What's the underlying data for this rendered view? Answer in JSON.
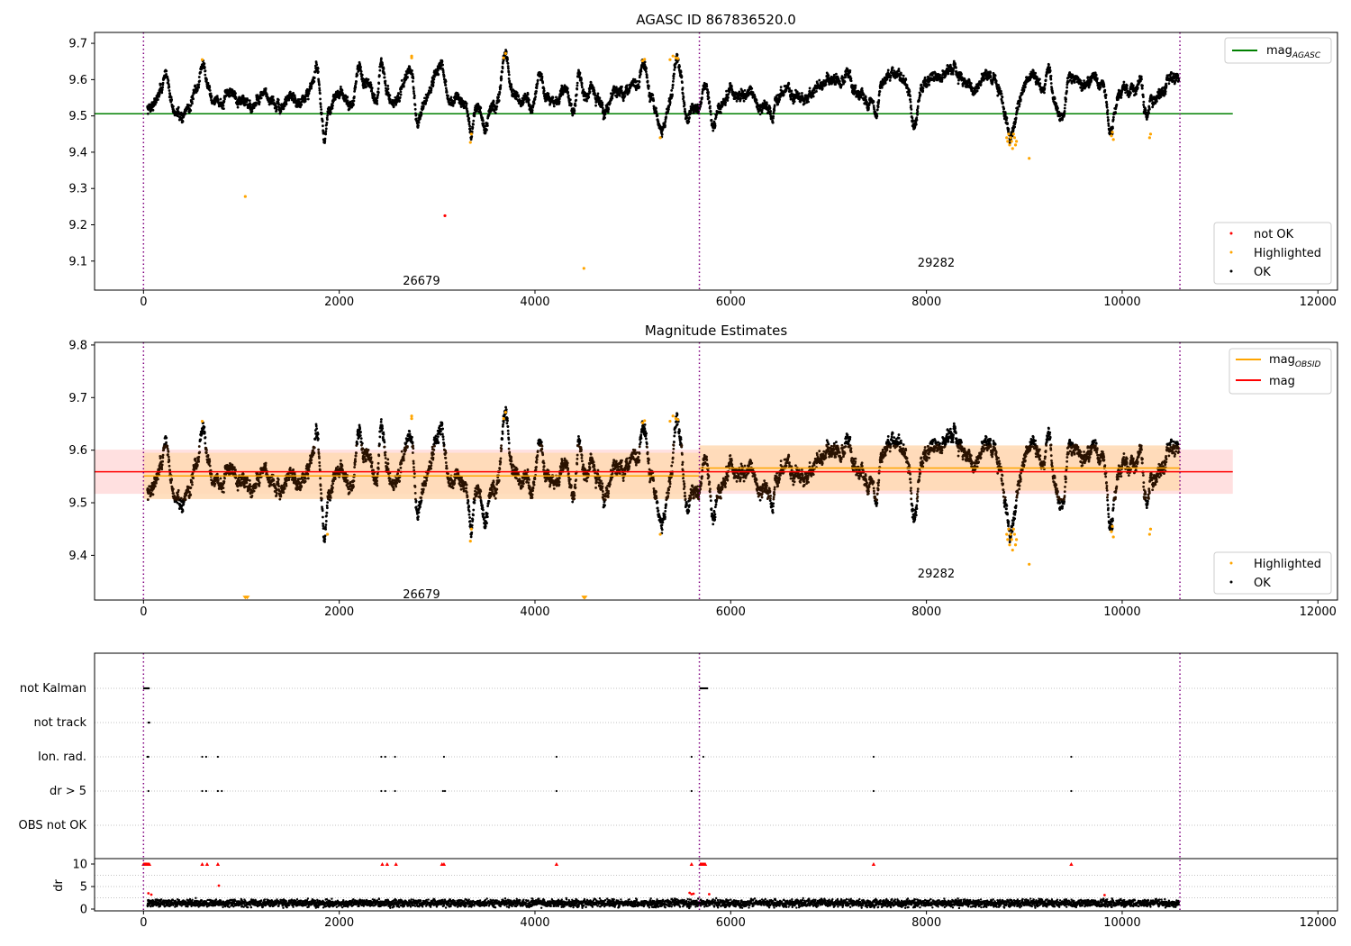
{
  "colors": {
    "agasc_line": "#008000",
    "obsid_mag": "#ffa500",
    "mean_mag": "#ff0000",
    "not_ok": "#ff0000",
    "highlighted": "#ffa500",
    "ok": "#000000",
    "obs_boundary": "#800080",
    "band_red": "#ffd5d5",
    "band_orange": "#ffd9b3",
    "grid": "#b0b0b0"
  },
  "chart_data": [
    {
      "type": "scatter",
      "title": "AGASC ID 867836520.0",
      "xlim": [
        -500,
        12200
      ],
      "ylim": [
        9.02,
        9.73
      ],
      "x_ticks": [
        0,
        2000,
        4000,
        6000,
        8000,
        10000,
        12000
      ],
      "y_ticks": [
        9.1,
        9.2,
        9.3,
        9.4,
        9.5,
        9.6,
        9.7
      ],
      "x_tick_labels": [
        "0",
        "2000",
        "4000",
        "6000",
        "8000",
        "10000",
        "12000"
      ],
      "y_tick_labels": [
        "9.1",
        "9.2",
        "9.3",
        "9.4",
        "9.5",
        "9.6",
        "9.7"
      ],
      "legend_lines": [
        {
          "name": "mag",
          "subscript": "AGASC",
          "color": "#008000"
        }
      ],
      "legend_lines_position": "upper right",
      "legend_points": [
        {
          "name": "not OK",
          "color": "#ff0000"
        },
        {
          "name": "Highlighted",
          "color": "#ffa500"
        },
        {
          "name": "OK",
          "color": "#000000"
        }
      ],
      "legend_points_position": "lower right",
      "hlines": [
        {
          "y": 9.506,
          "x": [
            -500,
            11130
          ],
          "color": "#008000",
          "label": "mag AGASC"
        }
      ],
      "obs_boundaries": [
        0,
        5680,
        10590
      ],
      "obs_labels": [
        {
          "text": "26679",
          "x": 2840,
          "y": 9.045
        },
        {
          "text": "29282",
          "x": 8100,
          "y": 9.095
        }
      ],
      "series": [
        {
          "name": "OK",
          "color": "#000000",
          "time_range": [
            40,
            10580
          ],
          "gaps": [
            [
              10590,
              10600
            ]
          ],
          "anchors_x": [
            40,
            200,
            300,
            400,
            560,
            620,
            700,
            800,
            900,
            1000,
            1100,
            1200,
            1300,
            1400,
            1500,
            1600,
            1700,
            1760,
            1850,
            1950,
            2000,
            2100,
            2200,
            2300,
            2400,
            2500,
            2560,
            2650,
            2700,
            2750,
            2800,
            2900,
            3000,
            3050,
            3100,
            3200,
            3300,
            3350,
            3400,
            3500,
            3600,
            3650,
            3700,
            3750,
            3850,
            4000,
            4100,
            4200,
            4300,
            4400,
            4500,
            4600,
            4700,
            4800,
            4900,
            5000,
            5100,
            5200,
            5300,
            5400,
            5450,
            5500,
            5560,
            5600,
            5680,
            5720,
            5800,
            5900,
            6000,
            6100,
            6200,
            6300,
            6400,
            6500,
            6600,
            6700,
            6800,
            6900,
            7000,
            7100,
            7200,
            7300,
            7400,
            7500,
            7600,
            7700,
            7800,
            7900,
            8000,
            8100,
            8200,
            8300,
            8400,
            8500,
            8600,
            8700,
            8800,
            8850,
            8900,
            9000,
            9100,
            9200,
            9300,
            9400,
            9500,
            9600,
            9700,
            9800,
            9900,
            10000,
            10100,
            10200,
            10300,
            10400,
            10500,
            10580
          ],
          "anchors_y": [
            9.52,
            9.57,
            9.51,
            9.5,
            9.57,
            9.6,
            9.56,
            9.53,
            9.57,
            9.55,
            9.53,
            9.56,
            9.55,
            9.51,
            9.56,
            9.54,
            9.57,
            9.6,
            9.47,
            9.55,
            9.56,
            9.53,
            9.56,
            9.6,
            9.52,
            9.56,
            9.53,
            9.57,
            9.63,
            9.6,
            9.5,
            9.55,
            9.61,
            9.58,
            9.54,
            9.55,
            9.52,
            9.47,
            9.53,
            9.55,
            9.52,
            9.57,
            9.63,
            9.58,
            9.54,
            9.53,
            9.55,
            9.53,
            9.57,
            9.51,
            9.54,
            9.57,
            9.5,
            9.57,
            9.55,
            9.57,
            9.6,
            9.55,
            9.48,
            9.56,
            9.63,
            9.6,
            9.52,
            9.54,
            9.51,
            9.58,
            9.55,
            9.52,
            9.57,
            9.55,
            9.58,
            9.52,
            9.56,
            9.55,
            9.57,
            9.55,
            9.56,
            9.58,
            9.59,
            9.6,
            9.58,
            9.56,
            9.53,
            9.59,
            9.61,
            9.62,
            9.59,
            9.55,
            9.6,
            9.61,
            9.62,
            9.63,
            9.58,
            9.56,
            9.61,
            9.6,
            9.52,
            9.47,
            9.5,
            9.58,
            9.6,
            9.57,
            9.53,
            9.56,
            9.59,
            9.58,
            9.6,
            9.58,
            9.51,
            9.58,
            9.57,
            9.52,
            9.55,
            9.56,
            9.59,
            9.6
          ],
          "noise": 0.015,
          "spikes": [
            [
              240,
              9.62
            ],
            [
              600,
              9.64
            ],
            [
              1780,
              9.64
            ],
            [
              2200,
              9.63
            ],
            [
              2430,
              9.65
            ],
            [
              2760,
              9.65
            ],
            [
              3050,
              9.64
            ],
            [
              3690,
              9.66
            ],
            [
              4050,
              9.62
            ],
            [
              4450,
              9.63
            ],
            [
              5110,
              9.65
            ],
            [
              5440,
              9.66
            ],
            [
              7190,
              9.64
            ],
            [
              7520,
              9.64
            ],
            [
              8580,
              9.61
            ],
            [
              9250,
              9.64
            ],
            [
              9470,
              9.62
            ],
            [
              10200,
              9.62
            ]
          ],
          "dips": [
            [
              1840,
              9.45
            ],
            [
              2780,
              9.47
            ],
            [
              3350,
              9.45
            ],
            [
              3490,
              9.46
            ],
            [
              5280,
              9.47
            ],
            [
              5550,
              9.48
            ],
            [
              5820,
              9.48
            ],
            [
              6420,
              9.48
            ],
            [
              7500,
              9.48
            ],
            [
              7870,
              9.47
            ],
            [
              8850,
              9.43
            ],
            [
              9380,
              9.5
            ],
            [
              9880,
              9.46
            ],
            [
              10230,
              9.46
            ]
          ]
        },
        {
          "name": "Highlighted",
          "color": "#ffa500",
          "points": [
            [
              600,
              9.655
            ],
            [
              1040,
              9.278
            ],
            [
              2740,
              9.665
            ],
            [
              2740,
              9.66
            ],
            [
              3340,
              9.427
            ],
            [
              3350,
              9.45
            ],
            [
              3680,
              9.66
            ],
            [
              3700,
              9.672
            ],
            [
              4500,
              9.08
            ],
            [
              5100,
              9.652
            ],
            [
              5120,
              9.656
            ],
            [
              5280,
              9.44
            ],
            [
              5380,
              9.655
            ],
            [
              5410,
              9.665
            ],
            [
              5440,
              9.66
            ],
            [
              5460,
              9.658
            ],
            [
              8820,
              9.44
            ],
            [
              8830,
              9.43
            ],
            [
              8840,
              9.45
            ],
            [
              8850,
              9.42
            ],
            [
              8860,
              9.44
            ],
            [
              8870,
              9.43
            ],
            [
              8880,
              9.41
            ],
            [
              8890,
              9.45
            ],
            [
              8900,
              9.44
            ],
            [
              8910,
              9.42
            ],
            [
              8920,
              9.43
            ],
            [
              9050,
              9.383
            ],
            [
              9890,
              9.445
            ],
            [
              9900,
              9.455
            ],
            [
              9910,
              9.435
            ],
            [
              10280,
              9.44
            ],
            [
              10290,
              9.45
            ]
          ]
        },
        {
          "name": "not OK",
          "color": "#ff0000",
          "points": [
            [
              3080,
              9.225
            ]
          ]
        }
      ]
    },
    {
      "type": "scatter",
      "title": "Magnitude Estimates",
      "xlim": [
        -500,
        12200
      ],
      "ylim": [
        9.315,
        9.805
      ],
      "x_ticks": [
        0,
        2000,
        4000,
        6000,
        8000,
        10000,
        12000
      ],
      "y_ticks": [
        9.4,
        9.5,
        9.6,
        9.7,
        9.8
      ],
      "x_tick_labels": [
        "0",
        "2000",
        "4000",
        "6000",
        "8000",
        "10000",
        "12000"
      ],
      "y_tick_labels": [
        "9.4",
        "9.5",
        "9.6",
        "9.7",
        "9.8"
      ],
      "legend_lines": [
        {
          "name": "mag",
          "subscript": "OBSID",
          "color": "#ffa500"
        },
        {
          "name": "mag",
          "subscript": "",
          "color": "#ff0000"
        }
      ],
      "legend_lines_position": "upper right",
      "legend_points": [
        {
          "name": "Highlighted",
          "color": "#ffa500"
        },
        {
          "name": "OK",
          "color": "#000000"
        }
      ],
      "legend_points_position": "lower right",
      "bands": [
        {
          "y": [
            9.517,
            9.601
          ],
          "x": [
            -500,
            11130
          ],
          "color": "#ffd5d5"
        },
        {
          "y": [
            9.507,
            9.595
          ],
          "x": [
            0,
            5680
          ],
          "color": "#ffd9b3"
        },
        {
          "y": [
            9.523,
            9.609
          ],
          "x": [
            5680,
            10590
          ],
          "color": "#ffd9b3"
        }
      ],
      "hlines": [
        {
          "y": 9.559,
          "x": [
            -500,
            11130
          ],
          "color": "#ff0000",
          "label": "mag"
        },
        {
          "y": 9.551,
          "x": [
            0,
            5680
          ],
          "color": "#ffa500",
          "label": "mag OBSID"
        },
        {
          "y": 9.566,
          "x": [
            5680,
            10590
          ],
          "color": "#ffa500",
          "label": "mag OBSID"
        }
      ],
      "obs_boundaries": [
        0,
        5680,
        10590
      ],
      "obs_labels": [
        {
          "text": "26679",
          "x": 2840,
          "y": 9.325
        },
        {
          "text": "29282",
          "x": 8100,
          "y": 9.365
        }
      ],
      "series": [
        {
          "name": "OK",
          "color": "#000000",
          "same_as_top": true
        },
        {
          "name": "Highlighted",
          "color": "#ffa500",
          "points": [
            [
              600,
              9.655
            ],
            [
              1040,
              9.318
            ],
            [
              1060,
              9.318
            ],
            [
              1880,
              9.44
            ],
            [
              2740,
              9.665
            ],
            [
              2740,
              9.66
            ],
            [
              3340,
              9.427
            ],
            [
              3350,
              9.45
            ],
            [
              3680,
              9.66
            ],
            [
              3700,
              9.672
            ],
            [
              4500,
              9.318
            ],
            [
              4510,
              9.318
            ],
            [
              5100,
              9.652
            ],
            [
              5120,
              9.656
            ],
            [
              5280,
              9.44
            ],
            [
              5380,
              9.655
            ],
            [
              5410,
              9.665
            ],
            [
              5440,
              9.66
            ],
            [
              5460,
              9.658
            ],
            [
              8820,
              9.44
            ],
            [
              8830,
              9.43
            ],
            [
              8840,
              9.45
            ],
            [
              8850,
              9.42
            ],
            [
              8860,
              9.44
            ],
            [
              8870,
              9.43
            ],
            [
              8880,
              9.41
            ],
            [
              8890,
              9.45
            ],
            [
              8900,
              9.44
            ],
            [
              8910,
              9.42
            ],
            [
              8920,
              9.43
            ],
            [
              9050,
              9.383
            ],
            [
              9890,
              9.445
            ],
            [
              9900,
              9.455
            ],
            [
              9910,
              9.435
            ],
            [
              10280,
              9.44
            ],
            [
              10290,
              9.45
            ]
          ]
        }
      ]
    },
    {
      "type": "scatter",
      "title": "",
      "xlim": [
        -500,
        12200
      ],
      "x_ticks": [
        0,
        2000,
        4000,
        6000,
        8000,
        10000,
        12000
      ],
      "x_tick_labels": [
        "0",
        "2000",
        "4000",
        "6000",
        "8000",
        "10000",
        "12000"
      ],
      "flag_rows": [
        "not Kalman",
        "not track",
        "Ion. rad.",
        "dr > 5",
        "OBS not OK"
      ],
      "flag_points": {
        "not Kalman": [
          5,
          10,
          15,
          20,
          25,
          30,
          35,
          40,
          45,
          50,
          55,
          5690,
          5700,
          5710,
          5720,
          5730,
          5740,
          5750,
          5760
        ],
        "not track": [
          50,
          55,
          60
        ],
        "Ion. rad.": [
          40,
          45,
          50,
          600,
          640,
          760,
          2430,
          2470,
          2570,
          3070,
          4220,
          5600,
          5720,
          7460,
          9480
        ],
        "dr > 5": [
          50,
          600,
          640,
          760,
          800,
          2430,
          2470,
          2570,
          3060,
          3080,
          4220,
          5600,
          7460,
          9480
        ],
        "OBS not OK": []
      },
      "dr": {
        "ylabel": "dr",
        "ylim": [
          -0.4,
          11.2
        ],
        "y_ticks": [
          0,
          5,
          10
        ],
        "y_tick_labels": [
          "0",
          "5",
          "10"
        ],
        "gridlines": [
          2.5,
          5,
          7.5
        ],
        "clip_value": 10,
        "clipped_x": [
          0,
          10,
          20,
          30,
          40,
          50,
          60,
          600,
          650,
          760,
          2440,
          2490,
          2580,
          3050,
          3070,
          4220,
          5600,
          5690,
          5700,
          5710,
          5720,
          5730,
          5740,
          7460,
          9480
        ],
        "elevated_points": [
          [
            50,
            3.5
          ],
          [
            80,
            3.2
          ],
          [
            770,
            5.2
          ],
          [
            5580,
            3.6
          ],
          [
            5600,
            3.3
          ],
          [
            5620,
            3.4
          ],
          [
            5780,
            3.3
          ],
          [
            9820,
            3.1
          ]
        ],
        "baseline_mean": 1.3,
        "baseline_spread": 0.8,
        "red_threshold": 2.5,
        "time_range": [
          40,
          10580
        ]
      },
      "obs_boundaries": [
        0,
        5680,
        10590
      ]
    }
  ]
}
